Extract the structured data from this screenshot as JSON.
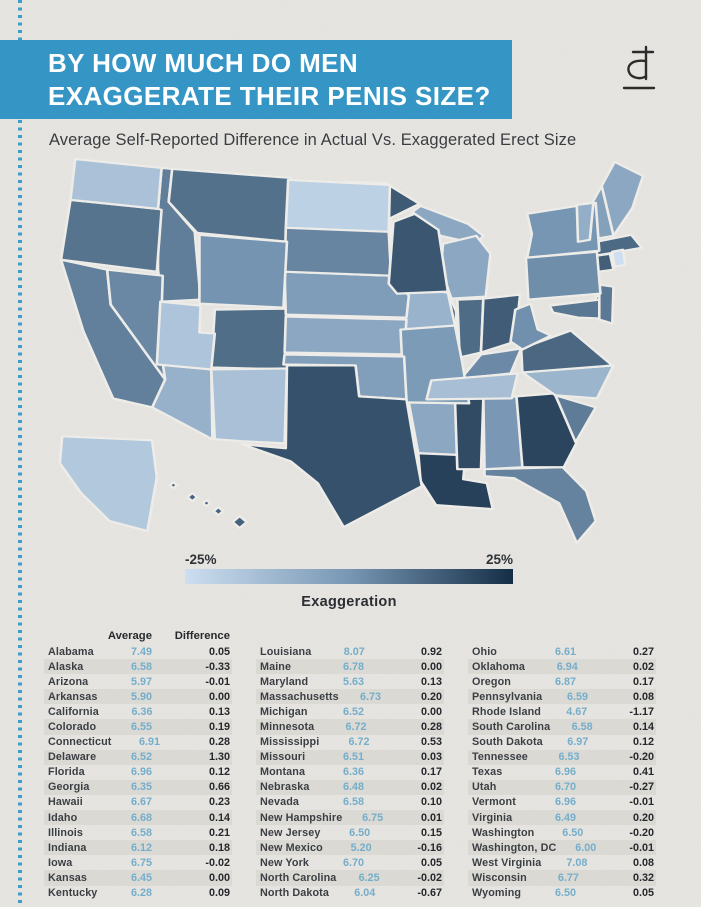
{
  "page": {
    "background": "#e7e5e1",
    "accent_blue": "#3596c6",
    "band_color": "#dbd9d4"
  },
  "header": {
    "title_line1": "BY HOW MUCH DO MEN",
    "title_line2": "EXAGGERATE THEIR PENIS SIZE?",
    "subtitle": "Average Self-Reported Difference in Actual Vs. Exaggerated Erect Size"
  },
  "chart_data": {
    "type": "choropleth-map",
    "title": "By How Much Do Men Exaggerate Their Penis Size?",
    "legend": {
      "min_label": "-25%",
      "max_label": "25%",
      "axis_label": "Exaggeration",
      "color_min": "#cddef0",
      "color_mid": "#7897b4",
      "color_max": "#152e47"
    },
    "table_headers": {
      "average": "Average",
      "difference": "Difference"
    },
    "states": [
      {
        "name": "Alabama",
        "average": "7.49",
        "difference": "0.05"
      },
      {
        "name": "Alaska",
        "average": "6.58",
        "difference": "-0.33"
      },
      {
        "name": "Arizona",
        "average": "5.97",
        "difference": "-0.01"
      },
      {
        "name": "Arkansas",
        "average": "5.90",
        "difference": "0.00"
      },
      {
        "name": "California",
        "average": "6.36",
        "difference": "0.13"
      },
      {
        "name": "Colorado",
        "average": "6.55",
        "difference": "0.19"
      },
      {
        "name": "Connecticut",
        "average": "6.91",
        "difference": "0.28"
      },
      {
        "name": "Delaware",
        "average": "6.52",
        "difference": "1.30"
      },
      {
        "name": "Florida",
        "average": "6.96",
        "difference": "0.12"
      },
      {
        "name": "Georgia",
        "average": "6.35",
        "difference": "0.66"
      },
      {
        "name": "Hawaii",
        "average": "6.67",
        "difference": "0.23"
      },
      {
        "name": "Idaho",
        "average": "6.68",
        "difference": "0.14"
      },
      {
        "name": "Illinois",
        "average": "6.58",
        "difference": "0.21"
      },
      {
        "name": "Indiana",
        "average": "6.12",
        "difference": "0.18"
      },
      {
        "name": "Iowa",
        "average": "6.75",
        "difference": "-0.02"
      },
      {
        "name": "Kansas",
        "average": "6.45",
        "difference": "0.00"
      },
      {
        "name": "Kentucky",
        "average": "6.28",
        "difference": "0.09"
      },
      {
        "name": "Louisiana",
        "average": "8.07",
        "difference": "0.92"
      },
      {
        "name": "Maine",
        "average": "6.78",
        "difference": "0.00"
      },
      {
        "name": "Maryland",
        "average": "5.63",
        "difference": "0.13"
      },
      {
        "name": "Massachusetts",
        "average": "6.73",
        "difference": "0.20"
      },
      {
        "name": "Michigan",
        "average": "6.52",
        "difference": "0.00"
      },
      {
        "name": "Minnesota",
        "average": "6.72",
        "difference": "0.28"
      },
      {
        "name": "Mississippi",
        "average": "6.72",
        "difference": "0.53"
      },
      {
        "name": "Missouri",
        "average": "6.51",
        "difference": "0.03"
      },
      {
        "name": "Montana",
        "average": "6.36",
        "difference": "0.17"
      },
      {
        "name": "Nebraska",
        "average": "6.48",
        "difference": "0.02"
      },
      {
        "name": "Nevada",
        "average": "6.58",
        "difference": "0.10"
      },
      {
        "name": "New Hampshire",
        "average": "6.75",
        "difference": "0.01"
      },
      {
        "name": "New Jersey",
        "average": "6.50",
        "difference": "0.15"
      },
      {
        "name": "New Mexico",
        "average": "5.20",
        "difference": "-0.16"
      },
      {
        "name": "New York",
        "average": "6.70",
        "difference": "0.05"
      },
      {
        "name": "North Carolina",
        "average": "6.25",
        "difference": "-0.02"
      },
      {
        "name": "North Dakota",
        "average": "6.04",
        "difference": "-0.67"
      },
      {
        "name": "Ohio",
        "average": "6.61",
        "difference": "0.27"
      },
      {
        "name": "Oklahoma",
        "average": "6.94",
        "difference": "0.02"
      },
      {
        "name": "Oregon",
        "average": "6.87",
        "difference": "0.17"
      },
      {
        "name": "Pennsylvania",
        "average": "6.59",
        "difference": "0.08"
      },
      {
        "name": "Rhode Island",
        "average": "4.67",
        "difference": "-1.17"
      },
      {
        "name": "South Carolina",
        "average": "6.58",
        "difference": "0.14"
      },
      {
        "name": "South Dakota",
        "average": "6.97",
        "difference": "0.12"
      },
      {
        "name": "Tennessee",
        "average": "6.53",
        "difference": "-0.20"
      },
      {
        "name": "Texas",
        "average": "6.96",
        "difference": "0.41"
      },
      {
        "name": "Utah",
        "average": "6.70",
        "difference": "-0.27"
      },
      {
        "name": "Vermont",
        "average": "6.96",
        "difference": "-0.01"
      },
      {
        "name": "Virginia",
        "average": "6.49",
        "difference": "0.20"
      },
      {
        "name": "Washington",
        "average": "6.50",
        "difference": "-0.20"
      },
      {
        "name": "Washington, DC",
        "average": "6.00",
        "difference": "-0.01"
      },
      {
        "name": "West Virginia",
        "average": "7.08",
        "difference": "0.08"
      },
      {
        "name": "Wisconsin",
        "average": "6.77",
        "difference": "0.32"
      },
      {
        "name": "Wyoming",
        "average": "6.50",
        "difference": "0.05"
      }
    ]
  }
}
